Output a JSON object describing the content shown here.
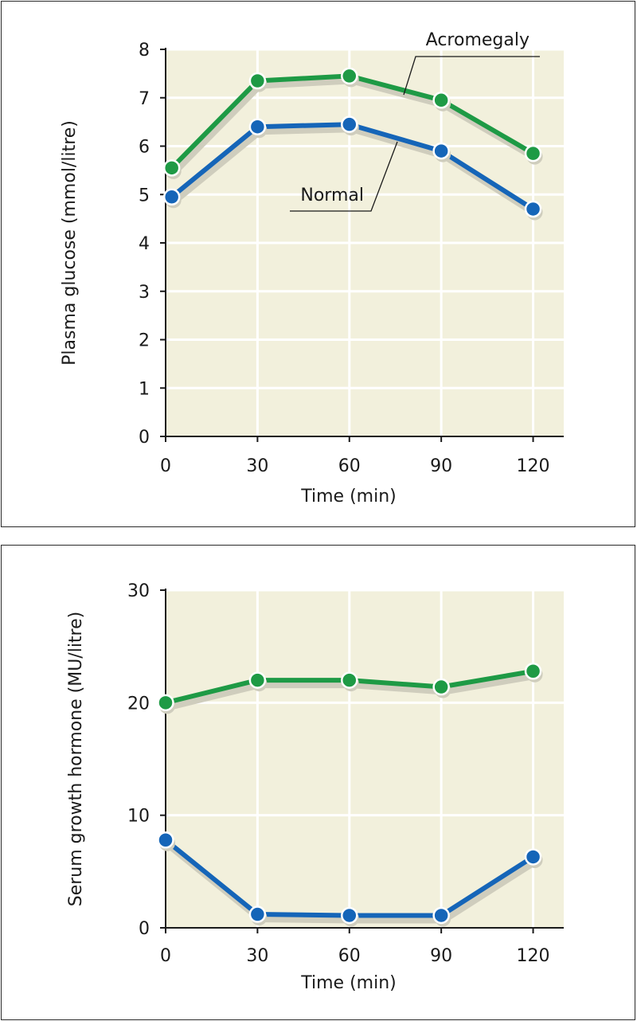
{
  "colors": {
    "plot_bg": "#f2f0dc",
    "grid": "#ffffff",
    "axis": "#1a1a1a",
    "acromegaly": "#1e9a45",
    "normal": "#1565b8",
    "shadow": "#cfcdbd"
  },
  "chart_data": [
    {
      "type": "line",
      "title": "",
      "xlabel": "Time (min)",
      "ylabel": "Plasma glucose (mmol/litre)",
      "x_ticks": [
        "0",
        "30",
        "60",
        "90",
        "120"
      ],
      "y_ticks": [
        "0",
        "1",
        "2",
        "3",
        "4",
        "5",
        "6",
        "7",
        "8"
      ],
      "xlim": [
        0,
        130
      ],
      "ylim": [
        0,
        8
      ],
      "grid": true,
      "x": [
        2,
        30,
        60,
        90,
        120
      ],
      "series": [
        {
          "name": "Acromegaly",
          "color": "#1e9a45",
          "values": [
            5.55,
            7.35,
            7.45,
            6.95,
            5.85
          ]
        },
        {
          "name": "Normal",
          "color": "#1565b8",
          "values": [
            4.95,
            6.4,
            6.45,
            5.9,
            4.7
          ]
        }
      ],
      "annotations": [
        {
          "text": "Acromegaly",
          "series": "Acromegaly"
        },
        {
          "text": "Normal",
          "series": "Normal"
        }
      ]
    },
    {
      "type": "line",
      "title": "",
      "xlabel": "Time (min)",
      "ylabel": "Serum growth hormone (MU/litre)",
      "x_ticks": [
        "0",
        "30",
        "60",
        "90",
        "120"
      ],
      "y_ticks": [
        "0",
        "10",
        "20",
        "30"
      ],
      "xlim": [
        0,
        130
      ],
      "ylim": [
        0,
        30
      ],
      "grid": true,
      "x": [
        0,
        30,
        60,
        90,
        120
      ],
      "series": [
        {
          "name": "",
          "color": "#1e9a45",
          "values": [
            20.0,
            22.0,
            22.0,
            21.4,
            22.8
          ]
        },
        {
          "name": "",
          "color": "#1565b8",
          "values": [
            7.8,
            1.2,
            1.1,
            1.1,
            6.3
          ]
        }
      ],
      "annotations": []
    }
  ]
}
